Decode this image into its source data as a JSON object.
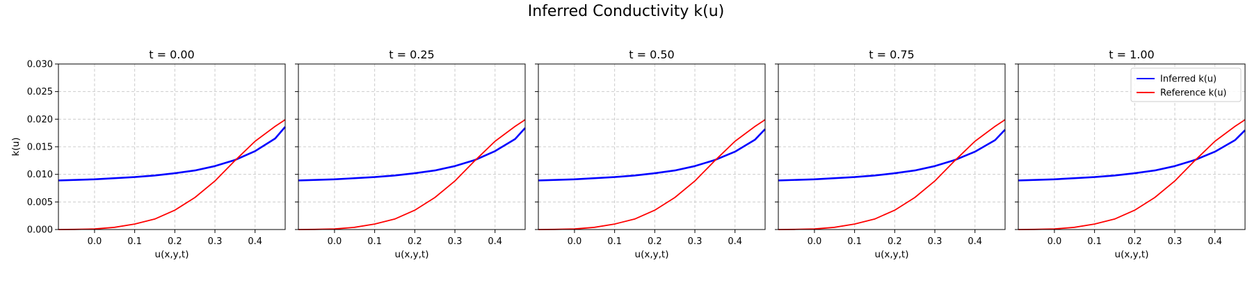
{
  "figure": {
    "title": "Inferred Conductivity k(u)"
  },
  "chart_data": {
    "type": "line",
    "xlabel": "u(x,y,t)",
    "ylabel": "k(u)",
    "xlim": [
      -0.09,
      0.475
    ],
    "ylim": [
      0,
      0.03
    ],
    "xticks": [
      "0.0",
      "0.1",
      "0.2",
      "0.3",
      "0.4"
    ],
    "yticks": [
      "0.000",
      "0.005",
      "0.010",
      "0.015",
      "0.020",
      "0.025",
      "0.030"
    ],
    "grid": true,
    "legend_location": "upper right, last panel only",
    "colors": {
      "inferred": "#0000ff",
      "reference": "#ff0000"
    },
    "panels": [
      {
        "title": "t = 0.00",
        "series": [
          {
            "name": "Inferred k(u)",
            "x": [
              -0.09,
              0.0,
              0.05,
              0.1,
              0.15,
              0.2,
              0.25,
              0.3,
              0.35,
              0.4,
              0.45,
              0.475
            ],
            "y": [
              0.0089,
              0.0091,
              0.0093,
              0.0095,
              0.0098,
              0.0102,
              0.0107,
              0.0115,
              0.0126,
              0.0142,
              0.0165,
              0.0186
            ]
          },
          {
            "name": "Reference k(u)",
            "x": [
              -0.09,
              -0.05,
              0.0,
              0.05,
              0.1,
              0.15,
              0.2,
              0.25,
              0.3,
              0.35,
              0.4,
              0.45,
              0.475
            ],
            "y": [
              0.0,
              3e-05,
              0.0001,
              0.0004,
              0.001,
              0.0019,
              0.0035,
              0.0058,
              0.0088,
              0.0125,
              0.016,
              0.0187,
              0.0199
            ]
          }
        ]
      },
      {
        "title": "t = 0.25",
        "series": [
          {
            "name": "Inferred k(u)",
            "x": [
              -0.09,
              0.0,
              0.05,
              0.1,
              0.15,
              0.2,
              0.25,
              0.3,
              0.35,
              0.4,
              0.45,
              0.475
            ],
            "y": [
              0.0089,
              0.0091,
              0.0093,
              0.0095,
              0.0098,
              0.0102,
              0.0107,
              0.0115,
              0.0126,
              0.0142,
              0.0164,
              0.0184
            ]
          },
          {
            "name": "Reference k(u)",
            "x": [
              -0.09,
              -0.05,
              0.0,
              0.05,
              0.1,
              0.15,
              0.2,
              0.25,
              0.3,
              0.35,
              0.4,
              0.45,
              0.475
            ],
            "y": [
              0.0,
              3e-05,
              0.0001,
              0.0004,
              0.001,
              0.0019,
              0.0035,
              0.0058,
              0.0088,
              0.0125,
              0.016,
              0.0187,
              0.0199
            ]
          }
        ]
      },
      {
        "title": "t = 0.50",
        "series": [
          {
            "name": "Inferred k(u)",
            "x": [
              -0.09,
              0.0,
              0.05,
              0.1,
              0.15,
              0.2,
              0.25,
              0.3,
              0.35,
              0.4,
              0.45,
              0.475
            ],
            "y": [
              0.0089,
              0.0091,
              0.0093,
              0.0095,
              0.0098,
              0.0102,
              0.0107,
              0.0115,
              0.0126,
              0.0141,
              0.0163,
              0.0182
            ]
          },
          {
            "name": "Reference k(u)",
            "x": [
              -0.09,
              -0.05,
              0.0,
              0.05,
              0.1,
              0.15,
              0.2,
              0.25,
              0.3,
              0.35,
              0.4,
              0.45,
              0.475
            ],
            "y": [
              0.0,
              3e-05,
              0.0001,
              0.0004,
              0.001,
              0.0019,
              0.0035,
              0.0058,
              0.0088,
              0.0125,
              0.016,
              0.0187,
              0.0199
            ]
          }
        ]
      },
      {
        "title": "t = 0.75",
        "series": [
          {
            "name": "Inferred k(u)",
            "x": [
              -0.09,
              0.0,
              0.05,
              0.1,
              0.15,
              0.2,
              0.25,
              0.3,
              0.35,
              0.4,
              0.45,
              0.475
            ],
            "y": [
              0.0089,
              0.0091,
              0.0093,
              0.0095,
              0.0098,
              0.0102,
              0.0107,
              0.0115,
              0.0126,
              0.0141,
              0.0162,
              0.0181
            ]
          },
          {
            "name": "Reference k(u)",
            "x": [
              -0.09,
              -0.05,
              0.0,
              0.05,
              0.1,
              0.15,
              0.2,
              0.25,
              0.3,
              0.35,
              0.4,
              0.45,
              0.475
            ],
            "y": [
              0.0,
              3e-05,
              0.0001,
              0.0004,
              0.001,
              0.0019,
              0.0035,
              0.0058,
              0.0088,
              0.0125,
              0.016,
              0.0187,
              0.0199
            ]
          }
        ]
      },
      {
        "title": "t = 1.00",
        "series": [
          {
            "name": "Inferred k(u)",
            "x": [
              -0.09,
              0.0,
              0.05,
              0.1,
              0.15,
              0.2,
              0.25,
              0.3,
              0.35,
              0.4,
              0.45,
              0.475
            ],
            "y": [
              0.0089,
              0.0091,
              0.0093,
              0.0095,
              0.0098,
              0.0102,
              0.0107,
              0.0115,
              0.0126,
              0.0141,
              0.0162,
              0.018
            ]
          },
          {
            "name": "Reference k(u)",
            "x": [
              -0.09,
              -0.05,
              0.0,
              0.05,
              0.1,
              0.15,
              0.2,
              0.25,
              0.3,
              0.35,
              0.4,
              0.45,
              0.475
            ],
            "y": [
              0.0,
              3e-05,
              0.0001,
              0.0004,
              0.001,
              0.0019,
              0.0035,
              0.0058,
              0.0088,
              0.0125,
              0.016,
              0.0187,
              0.0199
            ]
          }
        ]
      }
    ]
  }
}
